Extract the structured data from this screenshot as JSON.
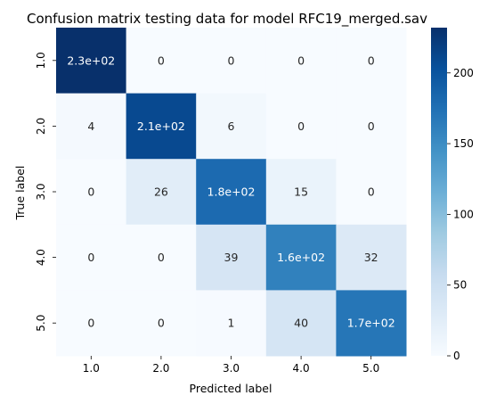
{
  "chart_data": {
    "type": "heatmap",
    "title": "Confusion matrix testing data for model RFC19_merged.sav",
    "xlabel": "Predicted label",
    "ylabel": "True label",
    "x_categories": [
      "1.0",
      "2.0",
      "3.0",
      "4.0",
      "5.0"
    ],
    "y_categories": [
      "1.0",
      "2.0",
      "3.0",
      "4.0",
      "5.0"
    ],
    "values": [
      [
        232,
        0,
        0,
        0,
        0
      ],
      [
        4,
        210,
        6,
        0,
        0
      ],
      [
        0,
        26,
        180,
        15,
        0
      ],
      [
        0,
        0,
        39,
        160,
        32
      ],
      [
        0,
        0,
        1,
        40,
        170
      ]
    ],
    "cell_labels": [
      [
        "2.3e+02",
        "0",
        "0",
        "0",
        "0"
      ],
      [
        "4",
        "2.1e+02",
        "6",
        "0",
        "0"
      ],
      [
        "0",
        "26",
        "1.8e+02",
        "15",
        "0"
      ],
      [
        "0",
        "0",
        "39",
        "1.6e+02",
        "32"
      ],
      [
        "0",
        "0",
        "1",
        "40",
        "1.7e+02"
      ]
    ],
    "colorbar": {
      "min": 0,
      "max": 232,
      "ticks": [
        0,
        50,
        100,
        150,
        200
      ],
      "colormap": "Blues"
    }
  }
}
